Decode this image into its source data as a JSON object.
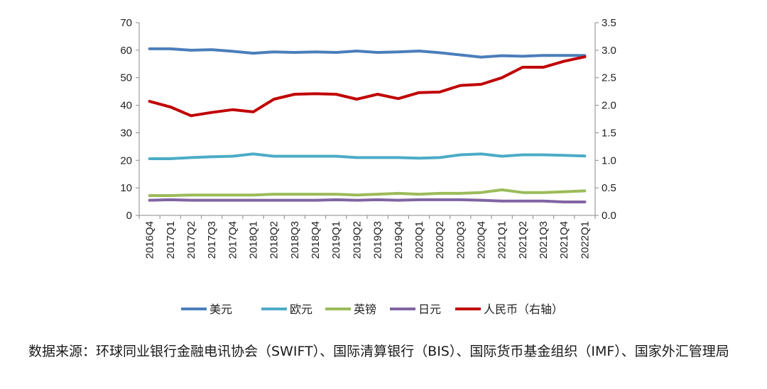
{
  "chart_data": {
    "type": "line",
    "categories": [
      "2016Q4",
      "2017Q1",
      "2017Q2",
      "2017Q3",
      "2017Q4",
      "2018Q1",
      "2018Q2",
      "2018Q3",
      "2018Q4",
      "2019Q1",
      "2019Q2",
      "2019Q3",
      "2019Q4",
      "2020Q1",
      "2020Q2",
      "2020Q3",
      "2020Q4",
      "2021Q1",
      "2021Q2",
      "2021Q3",
      "2021Q4",
      "2022Q1"
    ],
    "left_axis": {
      "min": 0,
      "max": 70,
      "step": 10,
      "tick_labels": [
        "0",
        "10",
        "20",
        "30",
        "40",
        "50",
        "60",
        "70"
      ]
    },
    "right_axis": {
      "min": 0,
      "max": 3.5,
      "step": 0.5,
      "tick_labels": [
        "0.0",
        "0.5",
        "1.0",
        "1.5",
        "2.0",
        "2.5",
        "3.0",
        "3.5"
      ]
    },
    "grid": false,
    "legend_position": "bottom",
    "series": [
      {
        "name": "美元",
        "axis": "left",
        "color": "#4a7ebb",
        "values": [
          60.5,
          60.5,
          60.0,
          60.2,
          59.6,
          58.9,
          59.4,
          59.2,
          59.4,
          59.2,
          59.7,
          59.2,
          59.4,
          59.7,
          59.1,
          58.3,
          57.5,
          58.0,
          57.8,
          58.1,
          58.1,
          58.1
        ]
      },
      {
        "name": "欧元",
        "axis": "left",
        "color": "#4bacc6",
        "values": [
          20.6,
          20.6,
          21.0,
          21.3,
          21.5,
          22.3,
          21.5,
          21.5,
          21.5,
          21.5,
          21.0,
          21.0,
          21.0,
          20.8,
          21.0,
          22.0,
          22.3,
          21.5,
          22.0,
          22.0,
          21.8,
          21.6
        ]
      },
      {
        "name": "英镑",
        "axis": "left",
        "color": "#9bbb59",
        "values": [
          7.2,
          7.2,
          7.4,
          7.4,
          7.4,
          7.4,
          7.7,
          7.7,
          7.7,
          7.7,
          7.4,
          7.7,
          8.0,
          7.7,
          8.0,
          8.0,
          8.3,
          9.3,
          8.3,
          8.3,
          8.6,
          8.9
        ]
      },
      {
        "name": "日元",
        "axis": "left",
        "color": "#8064a2",
        "values": [
          5.5,
          5.7,
          5.5,
          5.5,
          5.5,
          5.5,
          5.5,
          5.5,
          5.5,
          5.7,
          5.5,
          5.7,
          5.5,
          5.7,
          5.7,
          5.7,
          5.5,
          5.2,
          5.2,
          5.2,
          4.9,
          4.9
        ]
      },
      {
        "name": "人民币（右轴）",
        "axis": "right",
        "color": "#c00000",
        "values": [
          2.07,
          1.97,
          1.81,
          1.87,
          1.92,
          1.88,
          2.11,
          2.2,
          2.21,
          2.2,
          2.11,
          2.2,
          2.12,
          2.23,
          2.24,
          2.36,
          2.38,
          2.5,
          2.69,
          2.69,
          2.8,
          2.88
        ]
      }
    ]
  },
  "source_note": "数据来源：环球同业银行金融电讯协会（SWIFT）、国际清算银行（BIS）、国际货币基金组织（IMF）、国家外汇管理局"
}
